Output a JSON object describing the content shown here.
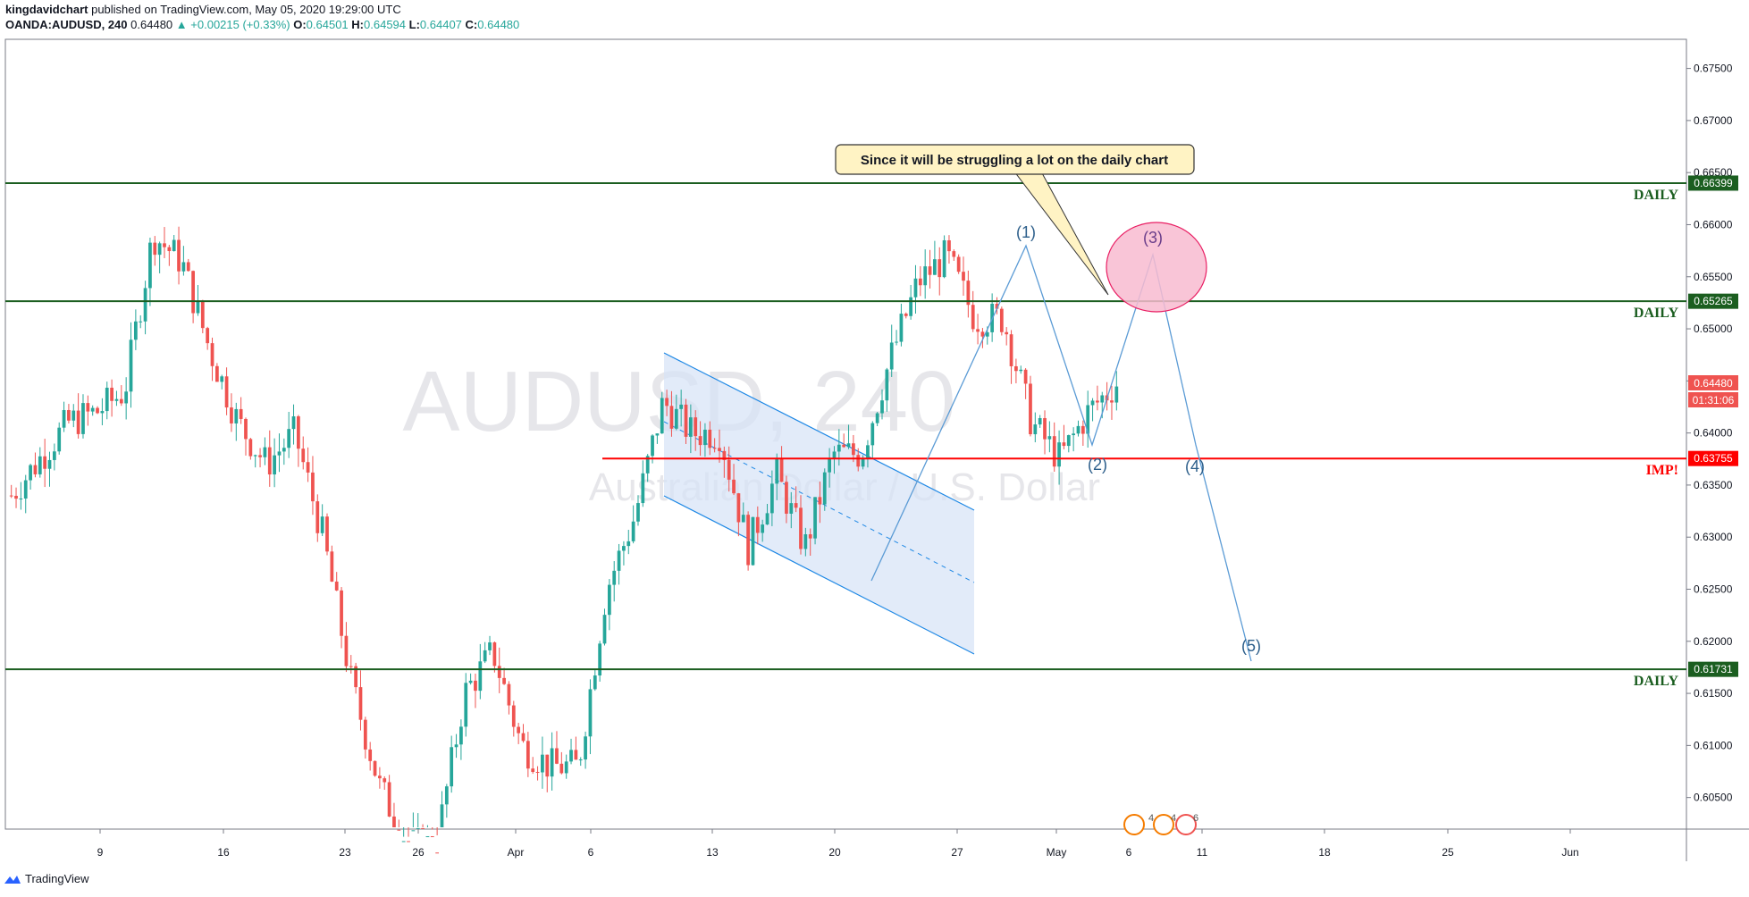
{
  "header": {
    "author": "kingdavidchart",
    "published_text": "published on TradingView.com, May 05, 2020 19:29:00 UTC",
    "symbol": "OANDA:AUDUSD, 240",
    "last": "0.64480",
    "change": "+0.00215 (+0.33%)",
    "o_label": "O:",
    "o_val": "0.64501",
    "h_label": "H:",
    "h_val": "0.64594",
    "l_label": "L:",
    "l_val": "0.64407",
    "c_label": "C:",
    "c_val": "0.64480"
  },
  "footer": {
    "brand": "TradingView"
  },
  "colors": {
    "up": "#26a69a",
    "down": "#ef5350",
    "daily": "#1b5e20",
    "imp": "#ff0000",
    "wave": "#5b9bd5",
    "channel_fill": "#d6e2f7"
  },
  "chart_data": {
    "type": "candlestick",
    "watermark_title": "AUDUSD, 240",
    "watermark_subtitle": "Australian Dollar / U.S. Dollar",
    "ylim": [
      0.6015,
      0.678
    ],
    "y_ticks": [
      "0.67500",
      "0.67000",
      "0.66500",
      "0.66000",
      "0.65500",
      "0.65000",
      "0.64500",
      "0.64000",
      "0.63500",
      "0.63000",
      "0.62500",
      "0.62000",
      "0.61500",
      "0.61000",
      "0.60500"
    ],
    "y_tick_values": [
      0.675,
      0.67,
      0.665,
      0.66,
      0.655,
      0.65,
      0.645,
      0.64,
      0.635,
      0.63,
      0.625,
      0.62,
      0.615,
      0.61,
      0.605
    ],
    "x_ticks": [
      "9",
      "16",
      "23",
      "26",
      "Apr",
      "6",
      "13",
      "20",
      "27",
      "May",
      "6",
      "11",
      "18",
      "25",
      "Jun"
    ],
    "levels": [
      {
        "name": "DAILY",
        "value": 0.66399,
        "label": "0.66399",
        "color": "#1b5e20"
      },
      {
        "name": "DAILY",
        "value": 0.65265,
        "label": "0.65265",
        "color": "#1b5e20"
      },
      {
        "name": "IMP!",
        "value": 0.63755,
        "label": "0.63755",
        "color": "#ff0000"
      },
      {
        "name": "DAILY",
        "value": 0.61731,
        "label": "0.61731",
        "color": "#1b5e20"
      }
    ],
    "price_label": "0.64480",
    "price_value": 0.6448,
    "countdown": "01:31:06",
    "callout": "Since it will be struggling a lot on the daily chart",
    "wave_labels": [
      "(1)",
      "(2)",
      "(3)",
      "(4)",
      "(5)"
    ],
    "event_badges": [
      "4",
      "4",
      "6"
    ],
    "segments": [
      {
        "trend": "up",
        "values": [
          0.634,
          0.6375,
          0.641,
          0.642,
          0.644
        ]
      },
      {
        "trend": "down",
        "values": [
          0.659,
          0.6565,
          0.648,
          0.641,
          0.637
        ]
      },
      {
        "trend": "down",
        "values": [
          0.64,
          0.63,
          0.616,
          0.606,
          0.6005
        ]
      },
      {
        "trend": "up",
        "values": [
          0.6005,
          0.615,
          0.619,
          0.61,
          0.608
        ]
      },
      {
        "trend": "up",
        "values": [
          0.608,
          0.625,
          0.632,
          0.643,
          0.64
        ]
      },
      {
        "trend": "down",
        "values": [
          0.64,
          0.629,
          0.636,
          0.629,
          0.638
        ]
      },
      {
        "trend": "up",
        "values": [
          0.638,
          0.647,
          0.6545,
          0.657,
          0.651
        ]
      },
      {
        "trend": "mixed",
        "values": [
          0.651,
          0.641,
          0.6375,
          0.642,
          0.6448
        ]
      }
    ]
  }
}
